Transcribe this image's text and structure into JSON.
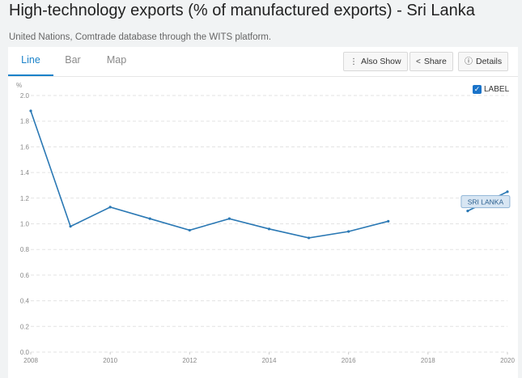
{
  "header": {
    "title": "High-technology exports (% of manufactured exports) - Sri Lanka",
    "subtitle": "United Nations, Comtrade database through the WITS platform."
  },
  "tabs": [
    {
      "label": "Line",
      "active": true
    },
    {
      "label": "Bar",
      "active": false
    },
    {
      "label": "Map",
      "active": false
    }
  ],
  "toolbar": {
    "also_show": "Also Show",
    "share": "Share",
    "details": "Details"
  },
  "label_toggle": {
    "label": "LABEL",
    "checked": true
  },
  "colors": {
    "accent": "#1a82c9",
    "line": "#2a78b4"
  },
  "chart_data": {
    "type": "line",
    "ylabel": "%",
    "xlim": [
      2008,
      2020
    ],
    "ylim": [
      0,
      2.0
    ],
    "yticks": [
      "0.0",
      "0.2",
      "0.4",
      "0.6",
      "0.8",
      "1.0",
      "1.2",
      "1.4",
      "1.6",
      "1.8",
      "2.0"
    ],
    "xticks": [
      "2008",
      "2010",
      "2012",
      "2014",
      "2016",
      "2018",
      "2020"
    ],
    "grid": true,
    "series": [
      {
        "name": "SRI LANKA",
        "segments": [
          [
            [
              2008,
              1.88
            ],
            [
              2009,
              0.98
            ],
            [
              2010,
              1.13
            ],
            [
              2011,
              1.04
            ],
            [
              2012,
              0.95
            ],
            [
              2013,
              1.04
            ],
            [
              2014,
              0.96
            ],
            [
              2015,
              0.89
            ],
            [
              2016,
              0.94
            ],
            [
              2017,
              1.02
            ]
          ],
          [
            [
              2019,
              1.1
            ],
            [
              2020,
              1.25
            ]
          ]
        ]
      }
    ]
  }
}
